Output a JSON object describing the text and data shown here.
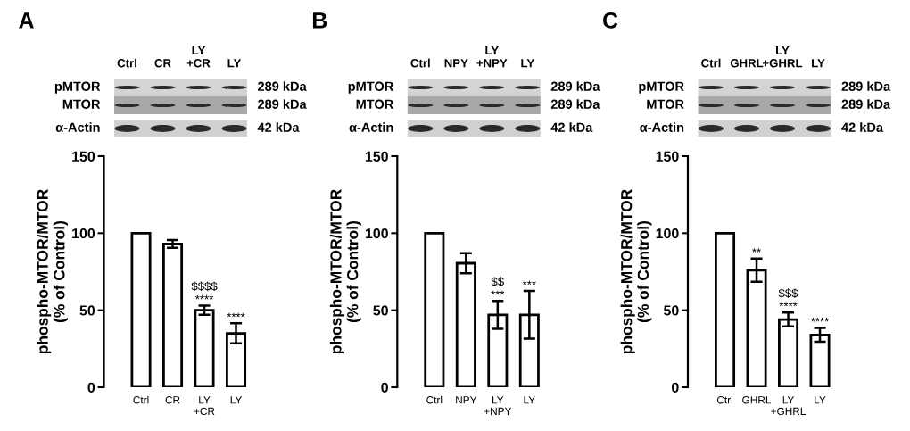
{
  "chart_data": [
    {
      "type": "bar",
      "title": "A",
      "categories": [
        "Ctrl",
        "CR",
        "LY\n+CR",
        "LY"
      ],
      "values": [
        100,
        93,
        50,
        35
      ],
      "errors": [
        null,
        2.5,
        3,
        6.5
      ],
      "color": "#ffffff",
      "ylabel": "phospho-MTOR/MTOR\n(% of Control)",
      "ylim": [
        0,
        150
      ],
      "yticks": [
        0,
        50,
        100,
        150
      ],
      "annotations": [
        {
          "text": "****",
          "x": "LY\n+CR",
          "y": 50
        },
        {
          "text": "$$$$",
          "x": "LY\n+CR",
          "y": 50
        },
        {
          "text": "****",
          "x": "LY",
          "y": 35
        },
        "pMTOR",
        "289 kDa",
        "MTOR",
        "289 kDa",
        "α-Actin",
        "42 kDa"
      ]
    },
    {
      "type": "bar",
      "title": "B",
      "categories": [
        "Ctrl",
        "NPY",
        "LY\n+NPY",
        "LY"
      ],
      "values": [
        100,
        80.5,
        47,
        47
      ],
      "errors": [
        null,
        6.5,
        9,
        15.5
      ],
      "color": "#ffffff",
      "ylabel": "phospho-MTOR/MTOR\n(% of Control)",
      "ylim": [
        0,
        150
      ],
      "yticks": [
        0,
        50,
        100,
        150
      ],
      "annotations": [
        {
          "text": "***",
          "x": "LY\n+NPY",
          "y": 47
        },
        {
          "text": "$$",
          "x": "LY\n+NPY",
          "y": 47
        },
        {
          "text": "***",
          "x": "LY",
          "y": 62.5
        },
        "pMTOR",
        "289 kDa",
        "MTOR",
        "289 kDa",
        "α-Actin",
        "42 kDa"
      ]
    },
    {
      "type": "bar",
      "title": "C",
      "categories": [
        "Ctrl",
        "GHRL",
        "LY\n+GHRL",
        "LY"
      ],
      "values": [
        100,
        76,
        44,
        34
      ],
      "errors": [
        null,
        7.5,
        4.5,
        4.5
      ],
      "color": "#ffffff",
      "ylabel": "phospho-MTOR/MTOR\n(% of Control)",
      "ylim": [
        0,
        150
      ],
      "yticks": [
        0,
        50,
        100,
        150
      ],
      "annotations": [
        {
          "text": "**",
          "x": "GHRL",
          "y": 76
        },
        {
          "text": "****",
          "x": "LY\n+GHRL",
          "y": 44
        },
        {
          "text": "$$$",
          "x": "LY\n+GHRL",
          "y": 44
        },
        {
          "text": "****",
          "x": "LY",
          "y": 34
        },
        "pMTOR",
        "289 kDa",
        "MTOR",
        "289 kDa",
        "α-Actin",
        "42 kDa"
      ]
    }
  ]
}
